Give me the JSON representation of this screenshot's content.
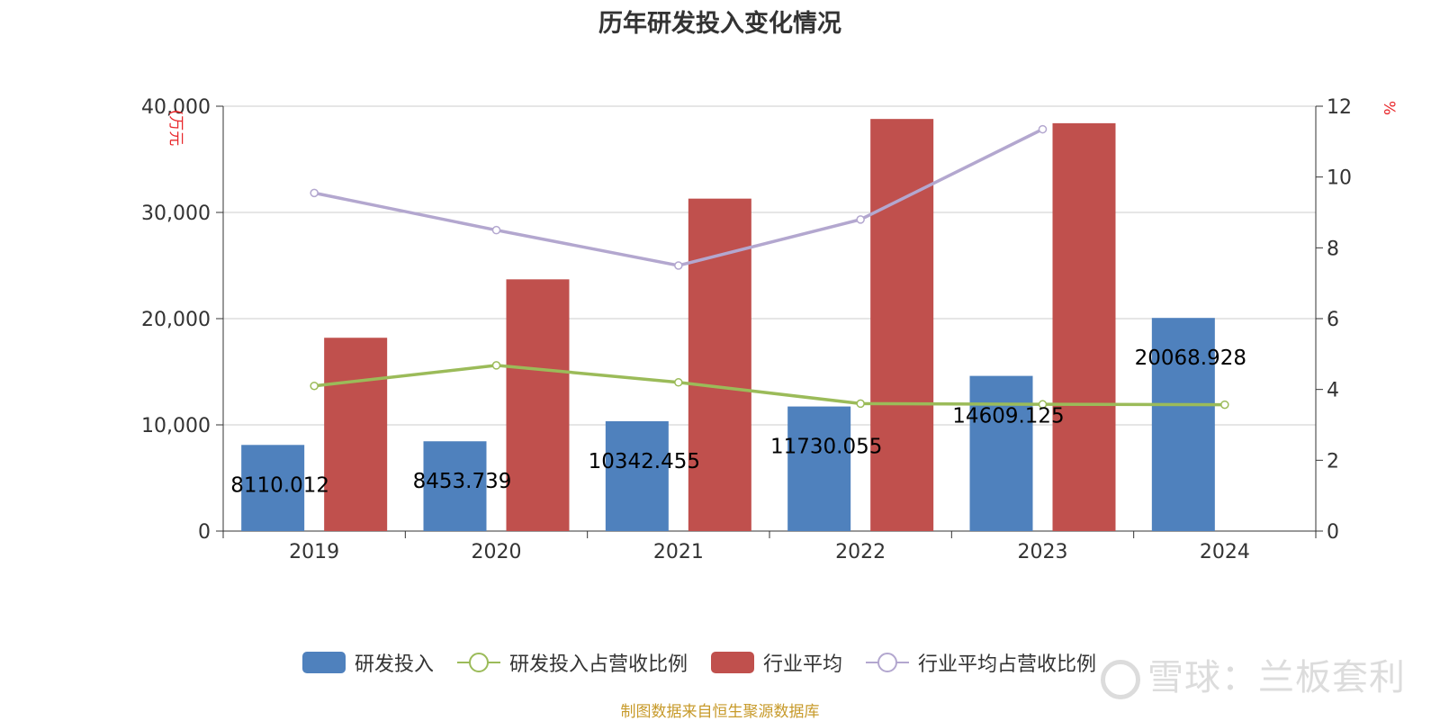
{
  "chart_data": {
    "type": "bar",
    "title": "历年研发投入变化情况",
    "categories": [
      "2019",
      "2020",
      "2021",
      "2022",
      "2023",
      "2024"
    ],
    "y_left": {
      "label": "(万元",
      "ticks": [
        "0",
        "10,000",
        "20,000",
        "30,000",
        "40,000"
      ],
      "range": [
        0,
        40000
      ]
    },
    "y_right": {
      "label": "%",
      "ticks": [
        "0",
        "2",
        "4",
        "6",
        "8",
        "10",
        "12"
      ],
      "range": [
        0,
        12
      ]
    },
    "series": [
      {
        "name": "研发投入",
        "type": "bar",
        "axis": "left",
        "color": "#4f81bd",
        "values": [
          8110.012,
          8453.739,
          10342.455,
          11730.055,
          14609.125,
          20068.928
        ],
        "labels": [
          "8110.012",
          "8453.739",
          "10342.455",
          "11730.055",
          "14609.125",
          "20068.928"
        ]
      },
      {
        "name": "研发投入占营收比例",
        "type": "line",
        "axis": "right",
        "color": "#9bbb59",
        "values": [
          4.1,
          4.68,
          4.2,
          3.6,
          3.58,
          3.57
        ]
      },
      {
        "name": "行业平均",
        "type": "bar",
        "axis": "left",
        "color": "#c0504d",
        "values": [
          18200,
          23700,
          31300,
          38800,
          38400,
          null
        ]
      },
      {
        "name": "行业平均占营收比例",
        "type": "line",
        "axis": "right",
        "color": "#b3a7cf",
        "values": [
          9.55,
          8.5,
          7.5,
          8.8,
          11.35,
          null
        ]
      }
    ],
    "grid": true,
    "legend_position": "bottom"
  },
  "footer": "制图数据来自恒生聚源数据库",
  "watermark": "雪球：兰板套利"
}
